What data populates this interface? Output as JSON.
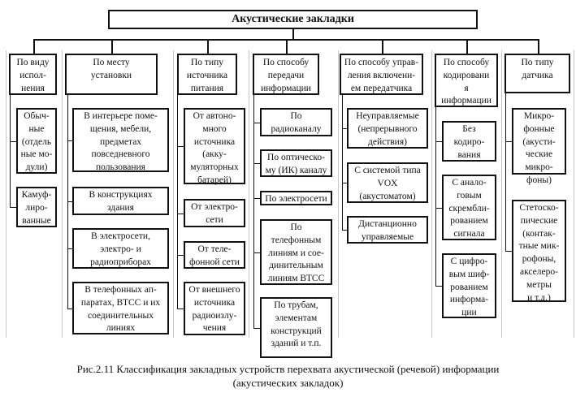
{
  "title": "Акустические закладки",
  "columns": [
    {
      "header": "По виду\nиспол-\nнения",
      "items": [
        "Обыч-\nные\n(отдель\nные мо-\nдули)",
        "Камуф-\nлиро-\nванные"
      ]
    },
    {
      "header": "По месту\nустановки",
      "items": [
        "В интерьере поме-\nщения, мебели,\nпредметах\nповседневного\nпользования",
        "В конструкциях\nздания",
        "В электросети,\nэлектро- и\nрадиоприборах",
        "В телефонных ап-\nпаратах, ВТСС и их\nсоединительных\nлиниях"
      ]
    },
    {
      "header": "По типу\nисточника\nпитания",
      "items": [
        "От автоно-\nмного\nисточника\n(акку-\nмуляторных\nбатарей)",
        "От электро-\nсети",
        "От теле-\nфонной сети",
        "От внешнего\nисточника\nрадиоизлу-\nчения"
      ]
    },
    {
      "header": "По способу\nпередачи\nинформации",
      "items": [
        "По\nрадиоканалу",
        "По оптическо-\nму (ИК) каналу",
        "По электросети",
        "По\nтелефонным\nлиниям и сое-\nдинительным\nлиниям ВТСС",
        "По трубам,\nэлементам\nконструкций\nзданий и т.п."
      ]
    },
    {
      "header": "По способу управ-\nления включени-\nем передатчика",
      "items": [
        "Неуправляемые\n(непрерывного\nдействия)",
        "С системой типа\nVOX\n(акустоматом)",
        "Дистанционно\nуправляемые"
      ]
    },
    {
      "header": "По способу\nкодировани\nя\nинформации",
      "items": [
        "Без\nкодиро-\nвания",
        "С анало-\nговым\nскрембли-\nрованием\nсигнала",
        "С цифро-\nвым шиф-\nрованием\nинформа-\nции"
      ]
    },
    {
      "header": "По типу\nдатчика",
      "items": [
        "Микро-\nфонные\n(акусти-\nческие\nмикро-\nфоны)",
        "Стетоско-\nпические\n(контак-\nтные мик-\nрофоны,\nакселеро-\nметры\nи т.д.)"
      ]
    }
  ],
  "caption": "Рис.2.11 Классификация закладных устройств перехвата акустической (речевой) информации\n(акустических закладок)"
}
